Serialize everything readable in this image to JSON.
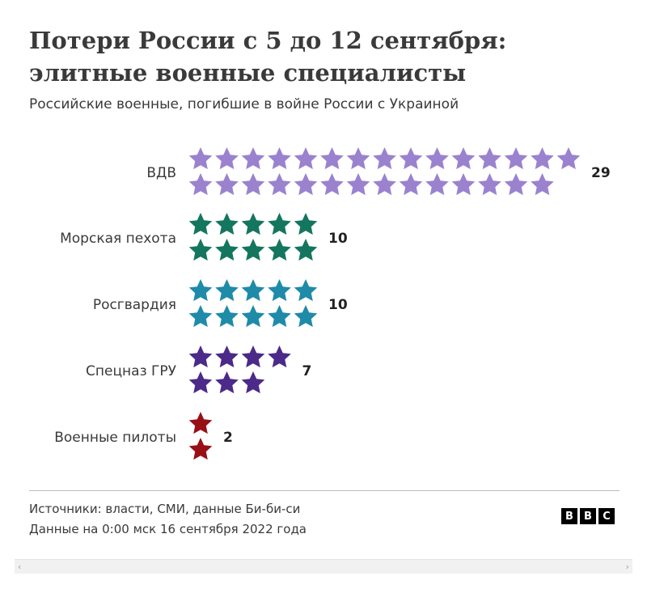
{
  "header": {
    "title": "Потери России с 5 до 12 сентября: элитные военные специалисты",
    "subtitle": "Российские военные, погибшие в войне России с Украиной"
  },
  "chart_data": {
    "type": "pictogram",
    "unit_icon": "star-icon",
    "categories": [
      "ВДВ",
      "Морская пехота",
      "Росгвардия",
      "Спецназ ГРУ",
      "Военные пилоты"
    ],
    "values": [
      29,
      10,
      10,
      7,
      2
    ],
    "colors": [
      "#9b82cf",
      "#14765f",
      "#1e8ba8",
      "#4b2a8a",
      "#990f16"
    ]
  },
  "footer": {
    "sources": "Источники: власти, СМИ, данные Би-би-си",
    "date": "Данные на 0:00 мск 16 сентября 2022 года",
    "logo_letters": [
      "B",
      "B",
      "C"
    ]
  }
}
